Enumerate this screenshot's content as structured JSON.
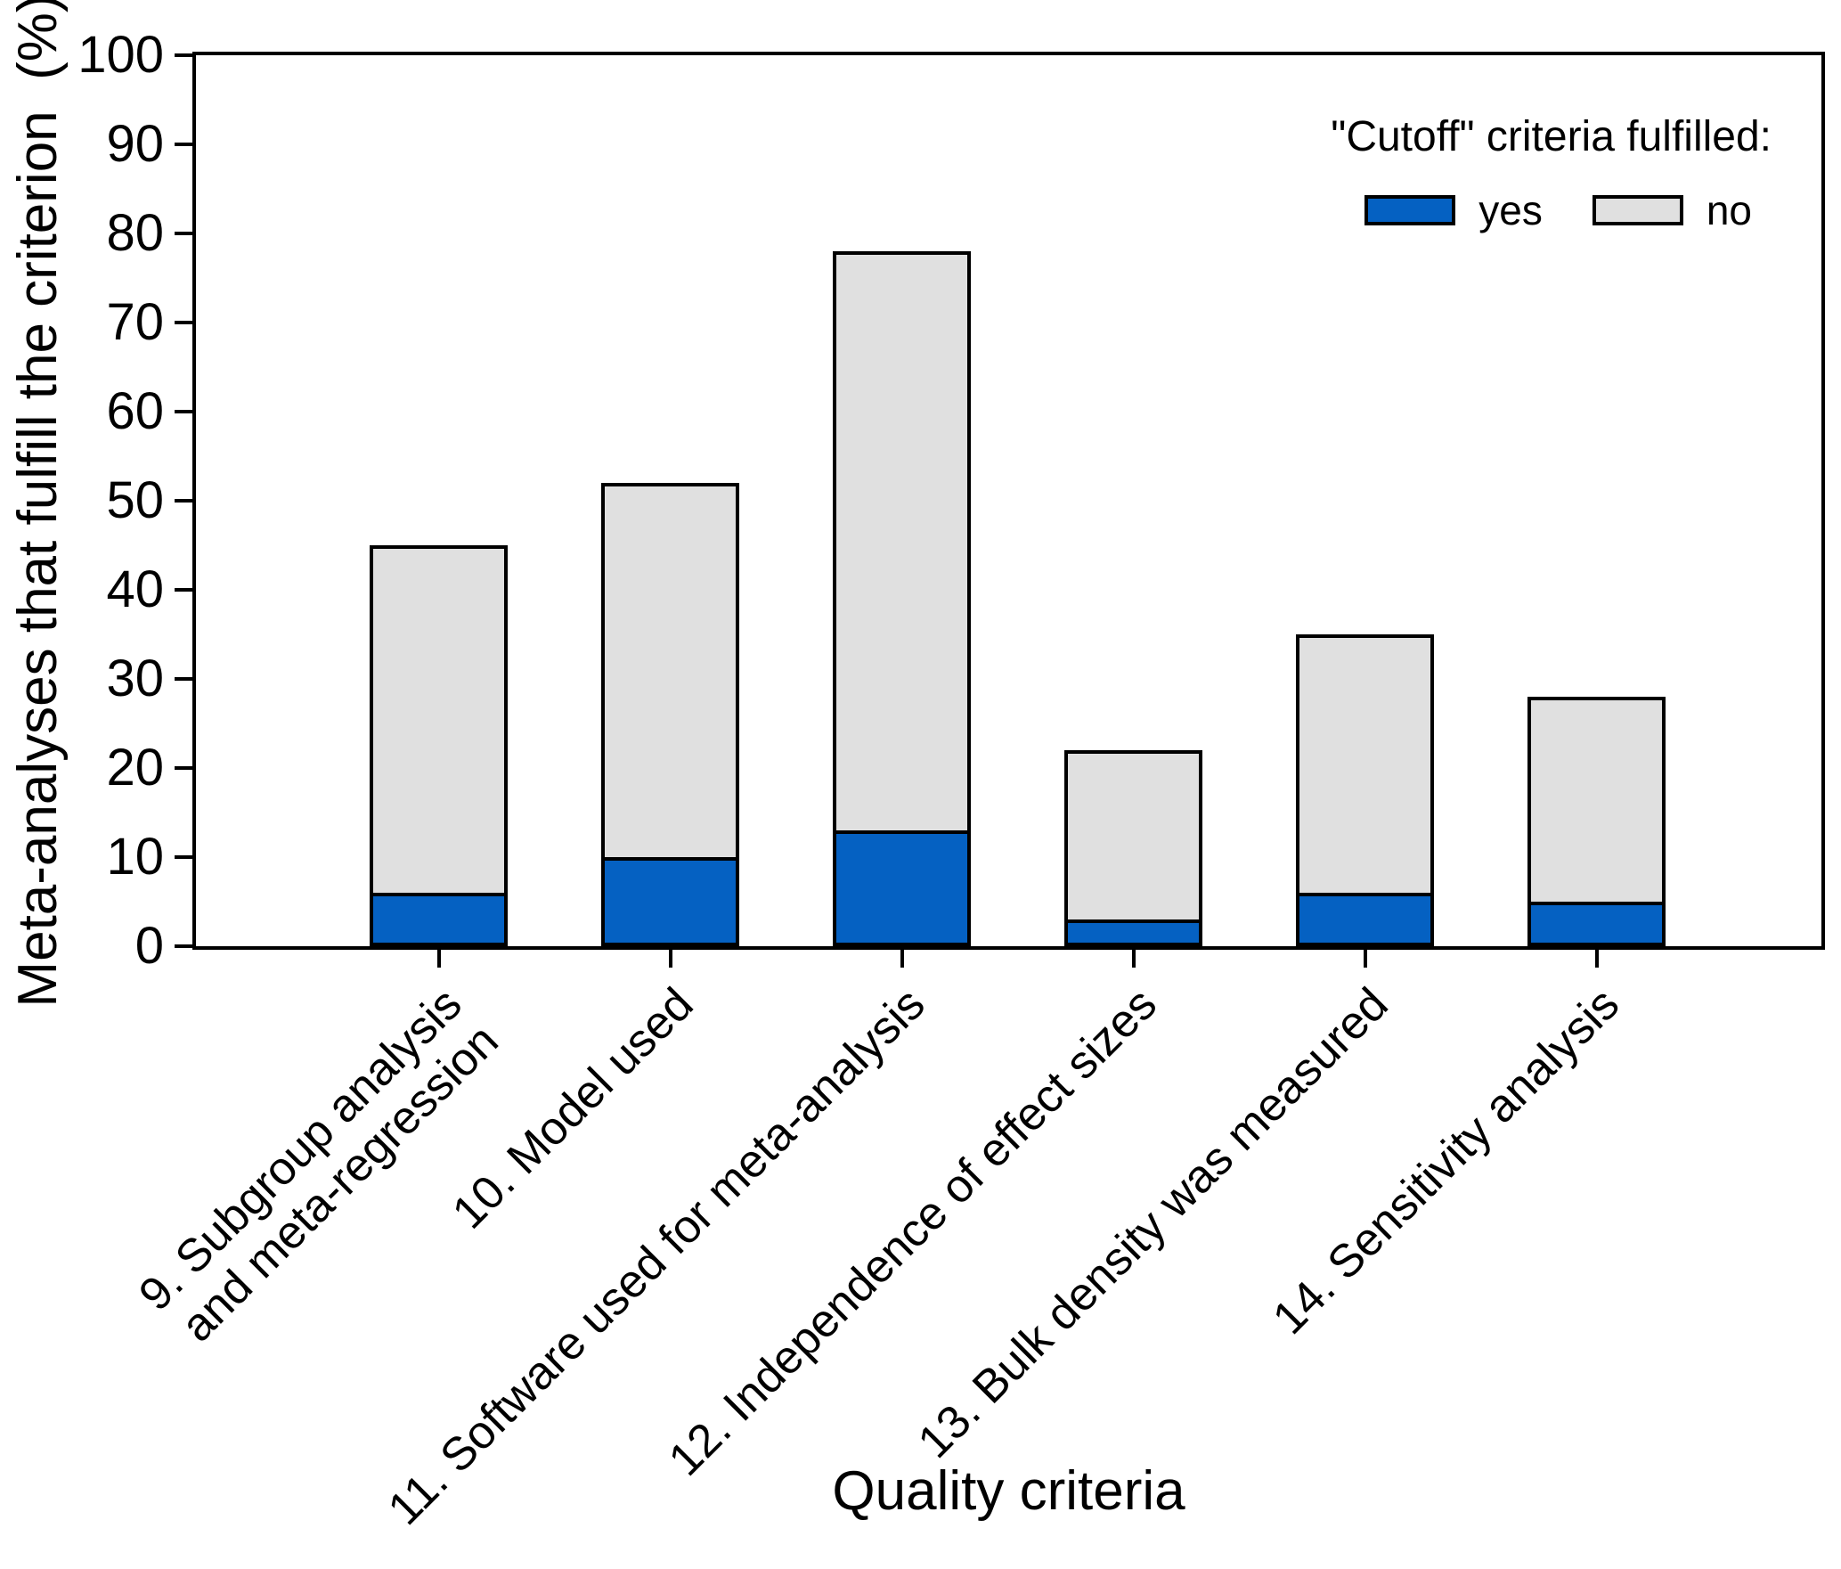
{
  "chart_data": {
    "type": "bar",
    "stacked": true,
    "title": "",
    "xlabel": "Quality criteria",
    "ylabel": "Meta-analyses that fulfill the criterion  (%)",
    "ylim": [
      0,
      100
    ],
    "ytick_interval": 10,
    "yticks": [
      0,
      10,
      20,
      30,
      40,
      50,
      60,
      70,
      80,
      90,
      100
    ],
    "grid": false,
    "categories": [
      "9. Subgroup analysis\nand meta-regression",
      "10. Model used",
      "11. Software used for meta-analysis",
      "12. Independence of effect sizes",
      "13. Bulk density was measured",
      "14. Sensitivity analysis"
    ],
    "series": [
      {
        "name": "yes",
        "color": "#0561C2",
        "values": [
          6,
          10,
          13,
          3,
          6,
          5
        ]
      },
      {
        "name": "no",
        "color": "#E0E0E0",
        "values": [
          39,
          42,
          65,
          19,
          29,
          23
        ]
      }
    ],
    "stack_totals": [
      45,
      52,
      78,
      22,
      35,
      28
    ],
    "bar_outline_color": "#000000",
    "legend": {
      "title": "\"Cutoff\" criteria fulfilled:",
      "position": "top-right-inside",
      "items": [
        {
          "label": "yes",
          "color": "#0561C2"
        },
        {
          "label": "no",
          "color": "#E0E0E0"
        }
      ]
    }
  }
}
